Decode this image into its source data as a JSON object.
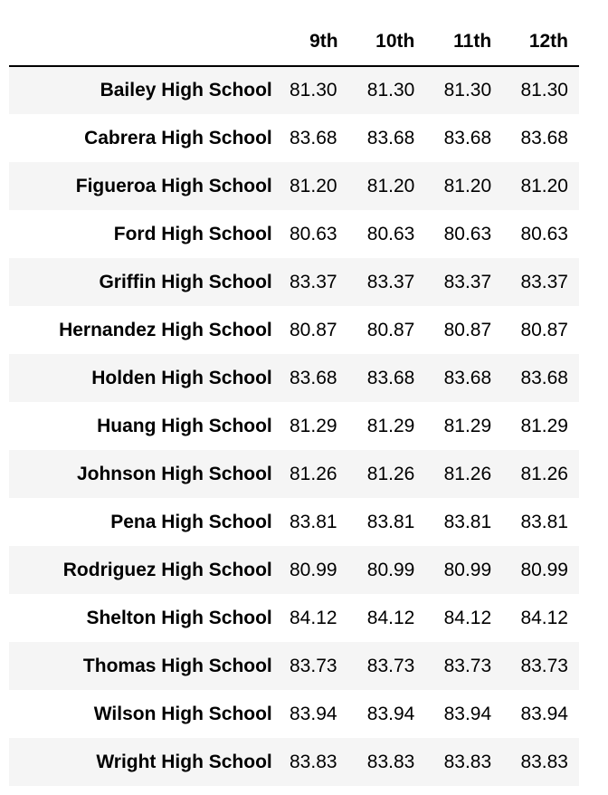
{
  "columns": [
    "9th",
    "10th",
    "11th",
    "12th"
  ],
  "rows": [
    {
      "school": "Bailey High School",
      "values": [
        "81.30",
        "81.30",
        "81.30",
        "81.30"
      ]
    },
    {
      "school": "Cabrera High School",
      "values": [
        "83.68",
        "83.68",
        "83.68",
        "83.68"
      ]
    },
    {
      "school": "Figueroa High School",
      "values": [
        "81.20",
        "81.20",
        "81.20",
        "81.20"
      ]
    },
    {
      "school": "Ford High School",
      "values": [
        "80.63",
        "80.63",
        "80.63",
        "80.63"
      ]
    },
    {
      "school": "Griffin High School",
      "values": [
        "83.37",
        "83.37",
        "83.37",
        "83.37"
      ]
    },
    {
      "school": "Hernandez High School",
      "values": [
        "80.87",
        "80.87",
        "80.87",
        "80.87"
      ]
    },
    {
      "school": "Holden High School",
      "values": [
        "83.68",
        "83.68",
        "83.68",
        "83.68"
      ]
    },
    {
      "school": "Huang High School",
      "values": [
        "81.29",
        "81.29",
        "81.29",
        "81.29"
      ]
    },
    {
      "school": "Johnson High School",
      "values": [
        "81.26",
        "81.26",
        "81.26",
        "81.26"
      ]
    },
    {
      "school": "Pena High School",
      "values": [
        "83.81",
        "83.81",
        "83.81",
        "83.81"
      ]
    },
    {
      "school": "Rodriguez High School",
      "values": [
        "80.99",
        "80.99",
        "80.99",
        "80.99"
      ]
    },
    {
      "school": "Shelton High School",
      "values": [
        "84.12",
        "84.12",
        "84.12",
        "84.12"
      ]
    },
    {
      "school": "Thomas High School",
      "values": [
        "83.73",
        "83.73",
        "83.73",
        "83.73"
      ]
    },
    {
      "school": "Wilson High School",
      "values": [
        "83.94",
        "83.94",
        "83.94",
        "83.94"
      ]
    },
    {
      "school": "Wright High School",
      "values": [
        "83.83",
        "83.83",
        "83.83",
        "83.83"
      ]
    }
  ]
}
